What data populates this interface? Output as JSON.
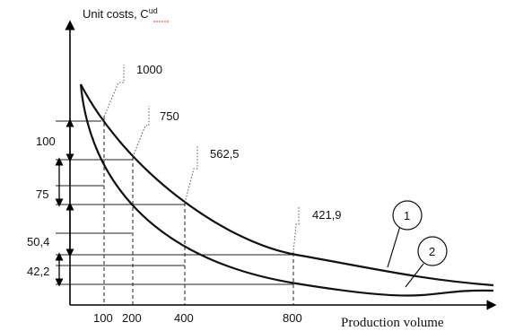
{
  "chart_data": {
    "type": "line",
    "title": "",
    "ylabel_text": "Unit costs, C",
    "ylabel_sup": "ud",
    "xlabel": "Production volume",
    "x_ticks": [
      "100",
      "200",
      "400",
      "800"
    ],
    "series": [
      {
        "name": "1",
        "x": [
          100,
          200,
          400,
          800
        ],
        "values": [
          1000,
          750,
          562.5,
          421.9
        ]
      },
      {
        "name": "2"
      }
    ],
    "point_labels": [
      "1000",
      "750",
      "562,5",
      "421,9"
    ],
    "difference_labels": [
      "100",
      "75",
      "50,4",
      "42,2"
    ]
  }
}
